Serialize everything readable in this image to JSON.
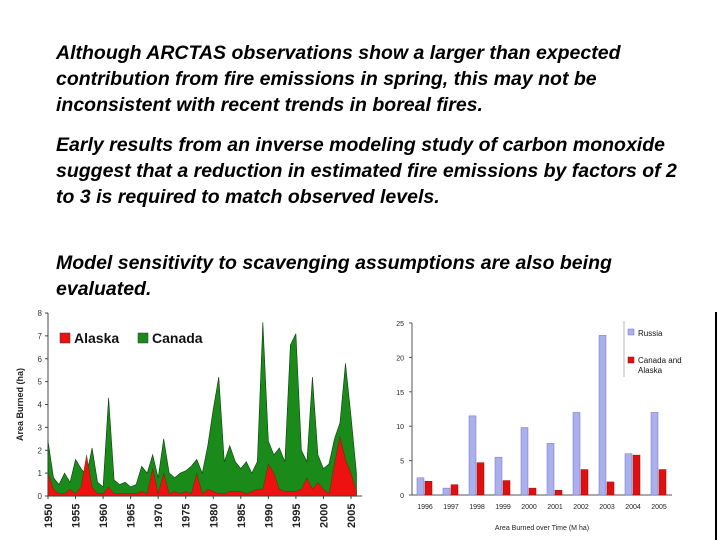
{
  "text": {
    "paragraph_1": "Although ARCTAS observations show a larger than expected contribution from fire emissions in spring, this may not be inconsistent with recent trends in boreal fires.",
    "paragraph_2": "Early results from an inverse modeling study of carbon monoxide suggest that a reduction in estimated fire emissions by factors of 2 to 3 is required to match observed levels.",
    "paragraph_3": "Model sensitivity to scavenging assumptions are also being evaluated."
  },
  "colors": {
    "alaska": "#ee1111",
    "canada": "#1a8a1a",
    "russia": "#aab0ee",
    "canada_alaska": "#e01010"
  },
  "chart_data": [
    {
      "type": "area",
      "title": "",
      "xlabel": "",
      "ylabel": "Area Burned (ha)",
      "xlim": [
        1950,
        2007
      ],
      "ylim": [
        0,
        8
      ],
      "yticks": [
        "0",
        "1",
        "2",
        "3",
        "4",
        "5",
        "6",
        "7",
        "8"
      ],
      "xticks": [
        "1950",
        "1955",
        "1960",
        "1965",
        "1970",
        "1975",
        "1980",
        "1985",
        "1990",
        "1995",
        "2000",
        "2005"
      ],
      "legend": "top-left",
      "series": [
        {
          "name": "Canada",
          "x": [
            1950,
            1951,
            1952,
            1953,
            1954,
            1955,
            1956,
            1957,
            1958,
            1959,
            1960,
            1961,
            1962,
            1963,
            1964,
            1965,
            1966,
            1967,
            1968,
            1969,
            1970,
            1971,
            1972,
            1973,
            1974,
            1975,
            1976,
            1977,
            1978,
            1979,
            1980,
            1981,
            1982,
            1983,
            1984,
            1985,
            1986,
            1987,
            1988,
            1989,
            1990,
            1991,
            1992,
            1993,
            1994,
            1995,
            1996,
            1997,
            1998,
            1999,
            2000,
            2001,
            2002,
            2003,
            2004,
            2005,
            2006
          ],
          "values": [
            2.4,
            0.8,
            0.5,
            1.0,
            0.6,
            1.6,
            1.2,
            0.9,
            2.1,
            0.6,
            0.4,
            4.3,
            0.7,
            0.5,
            0.6,
            0.4,
            0.5,
            1.3,
            1.0,
            1.8,
            0.8,
            2.5,
            1.0,
            0.8,
            1.0,
            1.1,
            1.3,
            1.6,
            1.0,
            2.2,
            3.8,
            5.2,
            1.5,
            2.2,
            1.5,
            1.2,
            1.5,
            1.0,
            1.5,
            7.6,
            2.4,
            1.8,
            2.1,
            1.5,
            6.6,
            7.1,
            2.0,
            1.5,
            5.2,
            1.8,
            1.2,
            1.4,
            2.5,
            3.2,
            5.8,
            3.5,
            1.0
          ]
        },
        {
          "name": "Alaska",
          "x": [
            1950,
            1951,
            1952,
            1953,
            1954,
            1955,
            1956,
            1957,
            1958,
            1959,
            1960,
            1961,
            1962,
            1963,
            1964,
            1965,
            1966,
            1967,
            1968,
            1969,
            1970,
            1971,
            1972,
            1973,
            1974,
            1975,
            1976,
            1977,
            1978,
            1979,
            1980,
            1981,
            1982,
            1983,
            1984,
            1985,
            1986,
            1987,
            1988,
            1989,
            1990,
            1991,
            1992,
            1993,
            1994,
            1995,
            1996,
            1997,
            1998,
            1999,
            2000,
            2001,
            2002,
            2003,
            2004,
            2005,
            2006
          ],
          "values": [
            1.0,
            0.3,
            0.1,
            0.1,
            0.3,
            0.1,
            0.4,
            1.8,
            0.4,
            0.1,
            0.1,
            0.4,
            0.1,
            0.1,
            0.1,
            0.1,
            0.1,
            0.2,
            0.1,
            1.2,
            0.1,
            1.0,
            0.1,
            0.2,
            0.1,
            0.2,
            0.1,
            1.0,
            0.1,
            0.3,
            0.2,
            0.1,
            0.1,
            0.2,
            0.2,
            0.2,
            0.1,
            0.2,
            0.3,
            0.3,
            1.4,
            1.0,
            0.3,
            0.2,
            0.2,
            0.2,
            0.3,
            0.8,
            0.3,
            0.6,
            0.3,
            0.1,
            1.4,
            2.6,
            1.6,
            1.0,
            0.2
          ]
        }
      ]
    },
    {
      "type": "bar",
      "title": "",
      "xlabel": "Area Burned over Time (M ha)",
      "ylabel": "",
      "ylim": [
        0,
        25
      ],
      "yticks": [
        "0",
        "5",
        "10",
        "15",
        "20",
        "25"
      ],
      "categories": [
        "1996",
        "1997",
        "1998",
        "1999",
        "2000",
        "2001",
        "2002",
        "2003",
        "2004",
        "2005"
      ],
      "legend": "top-right",
      "series": [
        {
          "name": "Russia",
          "values": [
            2.5,
            1.0,
            11.5,
            5.5,
            9.8,
            7.5,
            12.0,
            23.2,
            6.0,
            12.0
          ]
        },
        {
          "name": "Canada and Alaska",
          "values": [
            2.0,
            1.5,
            4.7,
            2.1,
            1.0,
            0.7,
            3.7,
            1.9,
            5.8,
            3.7
          ]
        }
      ]
    }
  ]
}
